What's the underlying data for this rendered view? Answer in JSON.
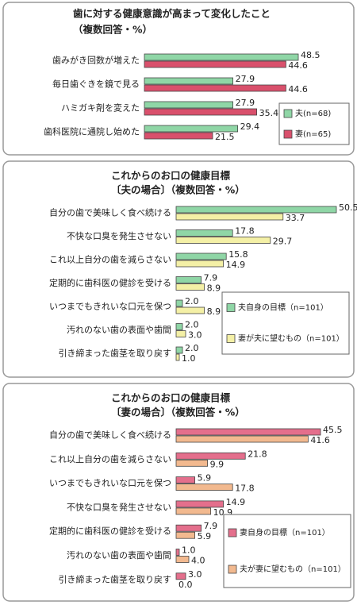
{
  "chart_data": [
    {
      "type": "bar",
      "title": "歯に対する健康意識が高まって変化したこと",
      "subtitle": "（複数回答・%）",
      "categories": [
        "歯みがき回数が増えた",
        "毎日歯ぐきを鏡で見る",
        "ハミガキ剤を変えた",
        "歯科医院に通院し始めた"
      ],
      "series": [
        {
          "name": "夫(n=68)",
          "color": "#8fd6a6",
          "values": [
            48.5,
            27.9,
            27.9,
            29.4
          ],
          "value_labels": [
            "48.5",
            "27.9",
            "27.9",
            "29.4"
          ]
        },
        {
          "name": "妻(n=65)",
          "color": "#d9506c",
          "values": [
            44.6,
            44.6,
            35.4,
            21.5
          ],
          "value_labels": [
            "44.6",
            "44.6",
            "35.4",
            "21.5"
          ]
        }
      ],
      "legend": "lower right"
    },
    {
      "type": "bar",
      "title": "これからのお口の健康目標",
      "subtitle": "〔夫の場合〕（複数回答・%）",
      "categories": [
        "自分の歯で美味しく食べ続ける",
        "不快な口臭を発生させない",
        "これ以上自分の歯を減らさない",
        "定期的に歯科医の健診を受ける",
        "いつまでもきれいな口元を保つ",
        "汚れのない歯の表面や歯間",
        "引き締まった歯茎を取り戻す"
      ],
      "series": [
        {
          "name": "夫自身の目標（n=101）",
          "color": "#8fd6a6",
          "values": [
            50.5,
            17.8,
            15.8,
            7.9,
            2,
            2,
            2
          ],
          "value_labels": [
            "50.5",
            "17.8",
            "15.8",
            "7.9",
            "2.0",
            "2.0",
            "2.0"
          ]
        },
        {
          "name": "妻が夫に望むもの（n=101）",
          "color": "#f4f0a6",
          "values": [
            33.7,
            29.7,
            14.9,
            8.9,
            8.9,
            3,
            1
          ],
          "value_labels": [
            "33.7",
            "29.7",
            "14.9",
            "8.9",
            "8.9",
            "3.0",
            "1.0"
          ]
        }
      ],
      "legend": "lower right"
    },
    {
      "type": "bar",
      "title": "これからのお口の健康目標",
      "subtitle": "〔妻の場合〕（複数回答・%）",
      "categories": [
        "自分の歯で美味しく食べ続ける",
        "これ以上自分の歯を減らさない",
        "いつまでもきれいな口元を保つ",
        "不快な口臭を発生させない",
        "定期的に歯科医の健診を受ける",
        "汚れのない歯の表面や歯間",
        "引き締まった歯茎を取り戻す"
      ],
      "series": [
        {
          "name": "妻自身の目標（n=101）",
          "color": "#e46f8c",
          "values": [
            45.5,
            21.8,
            5.9,
            14.9,
            7.9,
            1,
            3
          ],
          "value_labels": [
            "45.5",
            "21.8",
            "5.9",
            "14.9",
            "7.9",
            "1.0",
            "3.0"
          ]
        },
        {
          "name": "夫が妻に望むもの（n=101）",
          "color": "#f2b98f",
          "values": [
            41.6,
            9.9,
            17.8,
            10.9,
            5.9,
            4,
            0
          ],
          "value_labels": [
            "41.6",
            "9.9",
            "17.8",
            "10.9",
            "5.9",
            "4.0",
            "0.0"
          ]
        }
      ],
      "legend": "lower right"
    }
  ]
}
